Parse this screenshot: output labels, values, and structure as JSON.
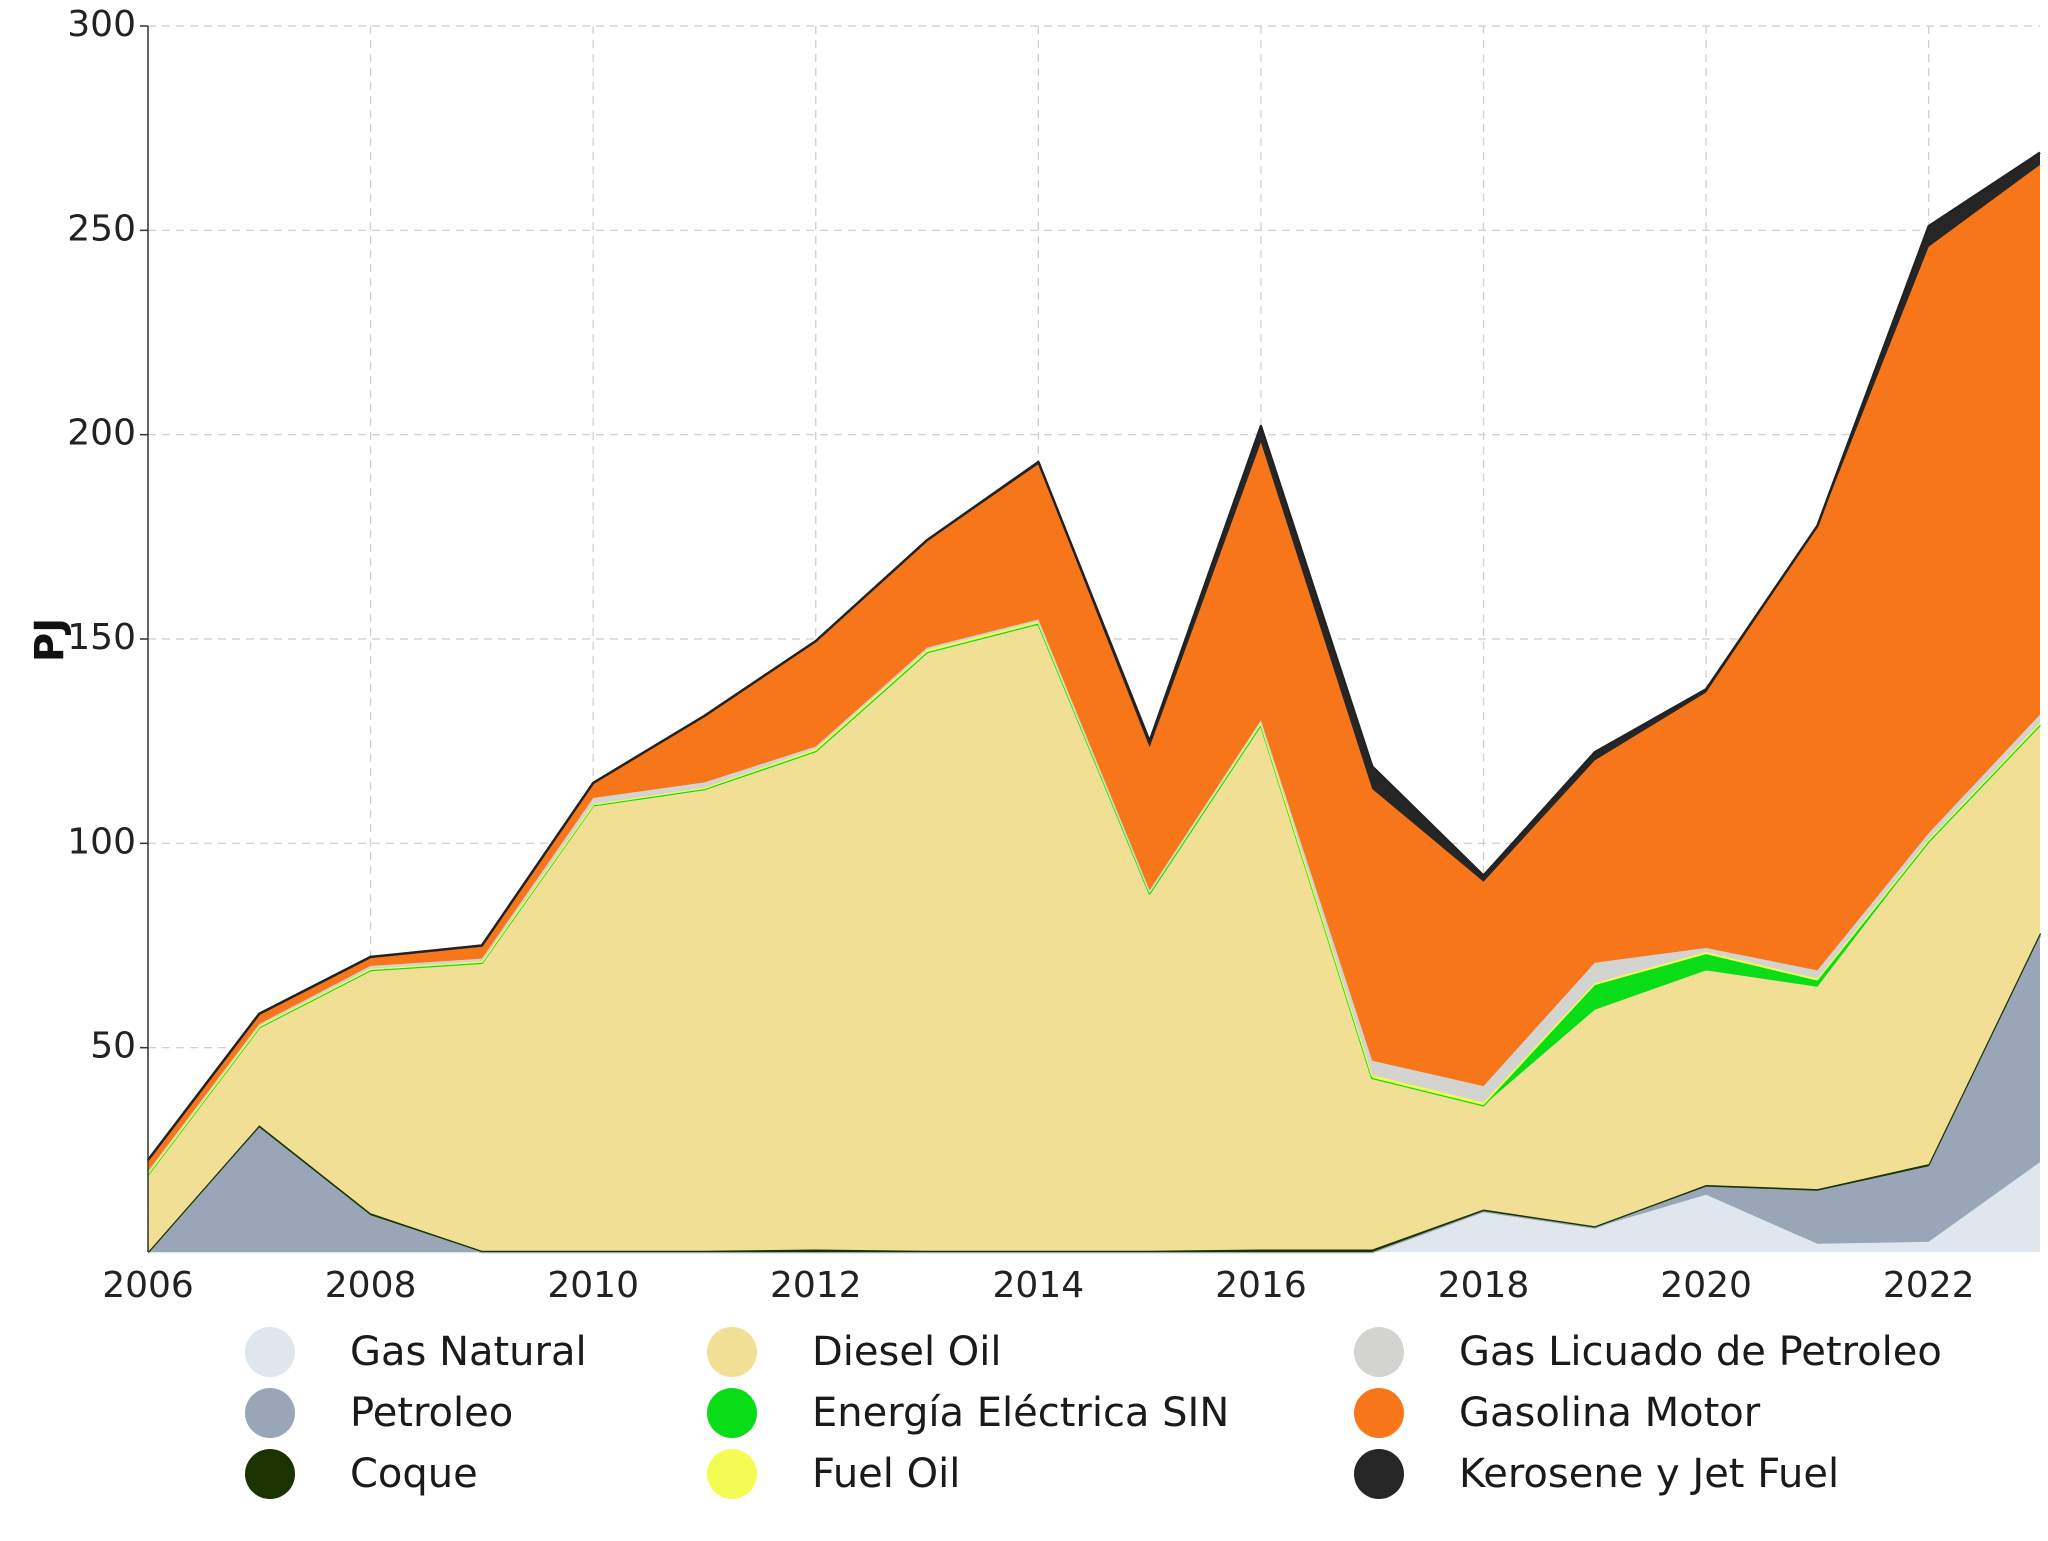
{
  "chart_data": {
    "type": "area",
    "stacked": true,
    "title": "",
    "xlabel": "",
    "ylabel": "PJ",
    "x": [
      2006,
      2007,
      2008,
      2009,
      2010,
      2011,
      2012,
      2013,
      2014,
      2015,
      2016,
      2017,
      2018,
      2019,
      2020,
      2021,
      2022,
      2023
    ],
    "xlim": [
      2006,
      2023
    ],
    "ylim": [
      0,
      300
    ],
    "xticks": [
      "2006",
      "2008",
      "2010",
      "2012",
      "2014",
      "2016",
      "2018",
      "2020",
      "2022"
    ],
    "yticks": [
      "50",
      "100",
      "150",
      "200",
      "250",
      "300"
    ],
    "grid": true,
    "legend_position": "bottom",
    "series": [
      {
        "name": "Gas Natural",
        "color": "#dfe6ee",
        "values": [
          0,
          0,
          0,
          0,
          0,
          0,
          0,
          0,
          0,
          0,
          0,
          0,
          10,
          6,
          14,
          2,
          2.5,
          22
        ]
      },
      {
        "name": "Petroleo",
        "color": "#98a6b8",
        "values": [
          0,
          30.5,
          9,
          0,
          0,
          0,
          0,
          0,
          0,
          0,
          0,
          0,
          0,
          0,
          2,
          13,
          18.5,
          55.5
        ]
      },
      {
        "name": "Coque",
        "color": "#1a3300",
        "values": [
          0,
          0.5,
          0.5,
          0.3,
          0.3,
          0.3,
          0.6,
          0.3,
          0.3,
          0.3,
          0.6,
          0.6,
          0.4,
          0.3,
          0.4,
          0.4,
          0.5,
          0.5
        ]
      },
      {
        "name": "Diesel Oil",
        "color": "#f0df95",
        "values": [
          19,
          24,
          59.5,
          70.5,
          109,
          113,
          122,
          146.5,
          153.5,
          87.5,
          128.5,
          42,
          25.5,
          53,
          52.5,
          49.5,
          79,
          51
        ]
      },
      {
        "name": "Energía Eléctrica SIN",
        "color": "#09dd17",
        "values": [
          0,
          0,
          0,
          0,
          0,
          0,
          0,
          0,
          0,
          0,
          0,
          0,
          0,
          6,
          4,
          1.5,
          0,
          0
        ]
      },
      {
        "name": "Fuel Oil",
        "color": "#f4fc53",
        "values": [
          0.3,
          0.3,
          0.3,
          0.3,
          0.3,
          0.3,
          0.5,
          0.5,
          0.5,
          0.5,
          0.5,
          0.7,
          0.7,
          0.5,
          0.5,
          0.5,
          0.5,
          0.5
        ]
      },
      {
        "name": "Gas Licuado de Petroleo",
        "color": "#d3d3d0",
        "values": [
          0.5,
          0.5,
          0.7,
          0.7,
          1.5,
          1.3,
          0.6,
          0.6,
          0.5,
          0.2,
          0.5,
          3.5,
          4,
          5,
          1,
          2,
          1.5,
          2
        ]
      },
      {
        "name": "Gasolina Motor",
        "color": "#f8761a",
        "values": [
          2.5,
          2.3,
          2,
          3,
          3.5,
          16,
          25.5,
          26,
          38,
          35,
          68,
          66.5,
          50,
          49.5,
          62.5,
          108.5,
          143.5,
          134.5
        ]
      },
      {
        "name": "Kerosene y Jet Fuel",
        "color": "#262626",
        "values": [
          0.2,
          0.2,
          0.2,
          0.2,
          0.2,
          0.3,
          0.3,
          0.3,
          0.5,
          1.5,
          4,
          5.5,
          1.5,
          2,
          0.8,
          0.3,
          5,
          3
        ]
      }
    ]
  }
}
